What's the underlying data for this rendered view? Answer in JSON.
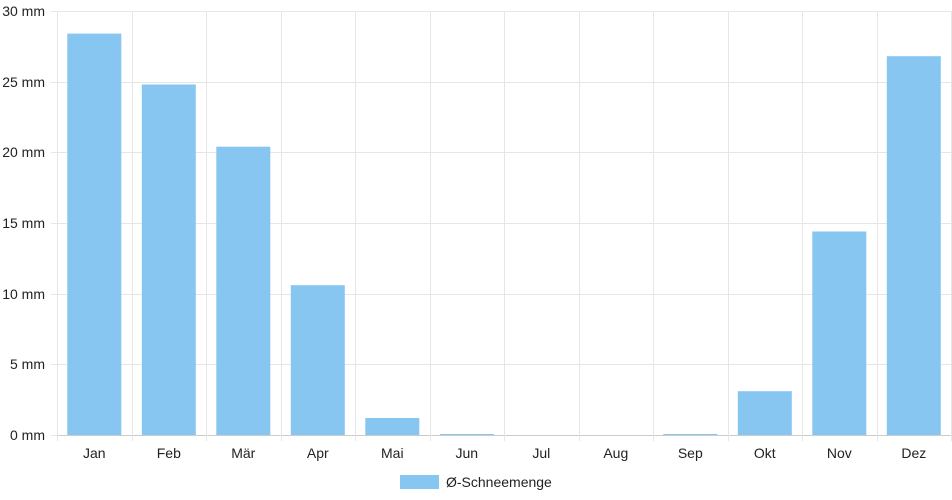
{
  "chart_data": {
    "type": "bar",
    "categories": [
      "Jan",
      "Feb",
      "Mär",
      "Apr",
      "Mai",
      "Jun",
      "Jul",
      "Aug",
      "Sep",
      "Okt",
      "Nov",
      "Dez"
    ],
    "series": [
      {
        "name": "Ø-Schneemenge",
        "values": [
          28.4,
          24.8,
          20.4,
          10.6,
          1.2,
          0.05,
          0,
          0,
          0.05,
          3.1,
          14.4,
          26.8
        ],
        "color": "#87c6f1"
      }
    ],
    "y_ticks": [
      "0 mm",
      "5 mm",
      "10 mm",
      "15 mm",
      "20 mm",
      "25 mm",
      "30 mm"
    ],
    "ylim": [
      0,
      30
    ],
    "grid": true,
    "legend_position": "bottom-center"
  }
}
